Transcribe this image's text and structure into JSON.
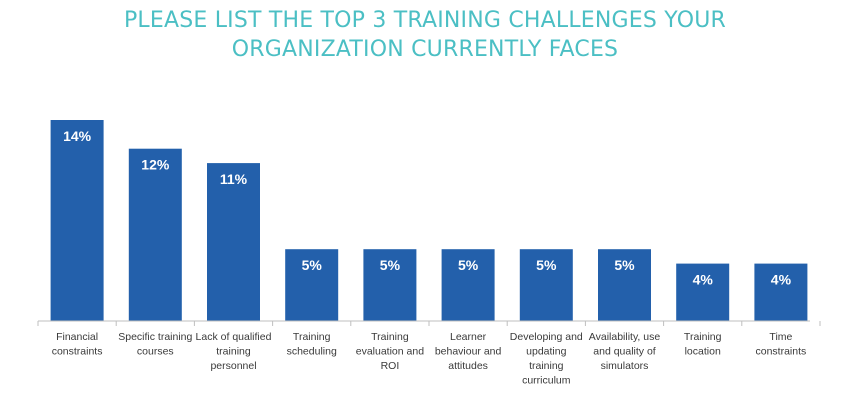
{
  "title_lines": [
    "PLEASE LIST THE TOP 3 TRAINING CHALLENGES YOUR",
    "ORGANIZATION CURRENTLY FACES"
  ],
  "colors": {
    "title": "#4bbfc4",
    "bar": "#2360ab",
    "bar_label": "#ffffff",
    "axis": "#bfbfbf",
    "category_text": "#3a3a3a"
  },
  "chart_data": {
    "type": "bar",
    "title": "PLEASE LIST THE TOP 3 TRAINING CHALLENGES YOUR ORGANIZATION CURRENTLY FACES",
    "xlabel": "",
    "ylabel": "",
    "ylim": [
      0,
      14
    ],
    "grid": false,
    "legend": "none",
    "value_format": "{v}%",
    "categories": [
      [
        "Financial",
        "constraints"
      ],
      [
        "Specific training",
        "courses"
      ],
      [
        "Lack of qualified",
        "training",
        "personnel"
      ],
      [
        "Training",
        "scheduling"
      ],
      [
        "Training",
        "evaluation and",
        "ROI"
      ],
      [
        "Learner",
        "behaviour and",
        "attitudes"
      ],
      [
        "Developing and",
        "updating",
        "training",
        "curriculum"
      ],
      [
        "Availability, use",
        "and quality of",
        "simulators"
      ],
      [
        "Training",
        "location"
      ],
      [
        "Time",
        "constraints"
      ]
    ],
    "values": [
      14,
      12,
      11,
      5,
      5,
      5,
      5,
      5,
      4,
      4
    ],
    "labels": [
      "14%",
      "12%",
      "11%",
      "5%",
      "5%",
      "5%",
      "5%",
      "5%",
      "4%",
      "4%"
    ]
  }
}
